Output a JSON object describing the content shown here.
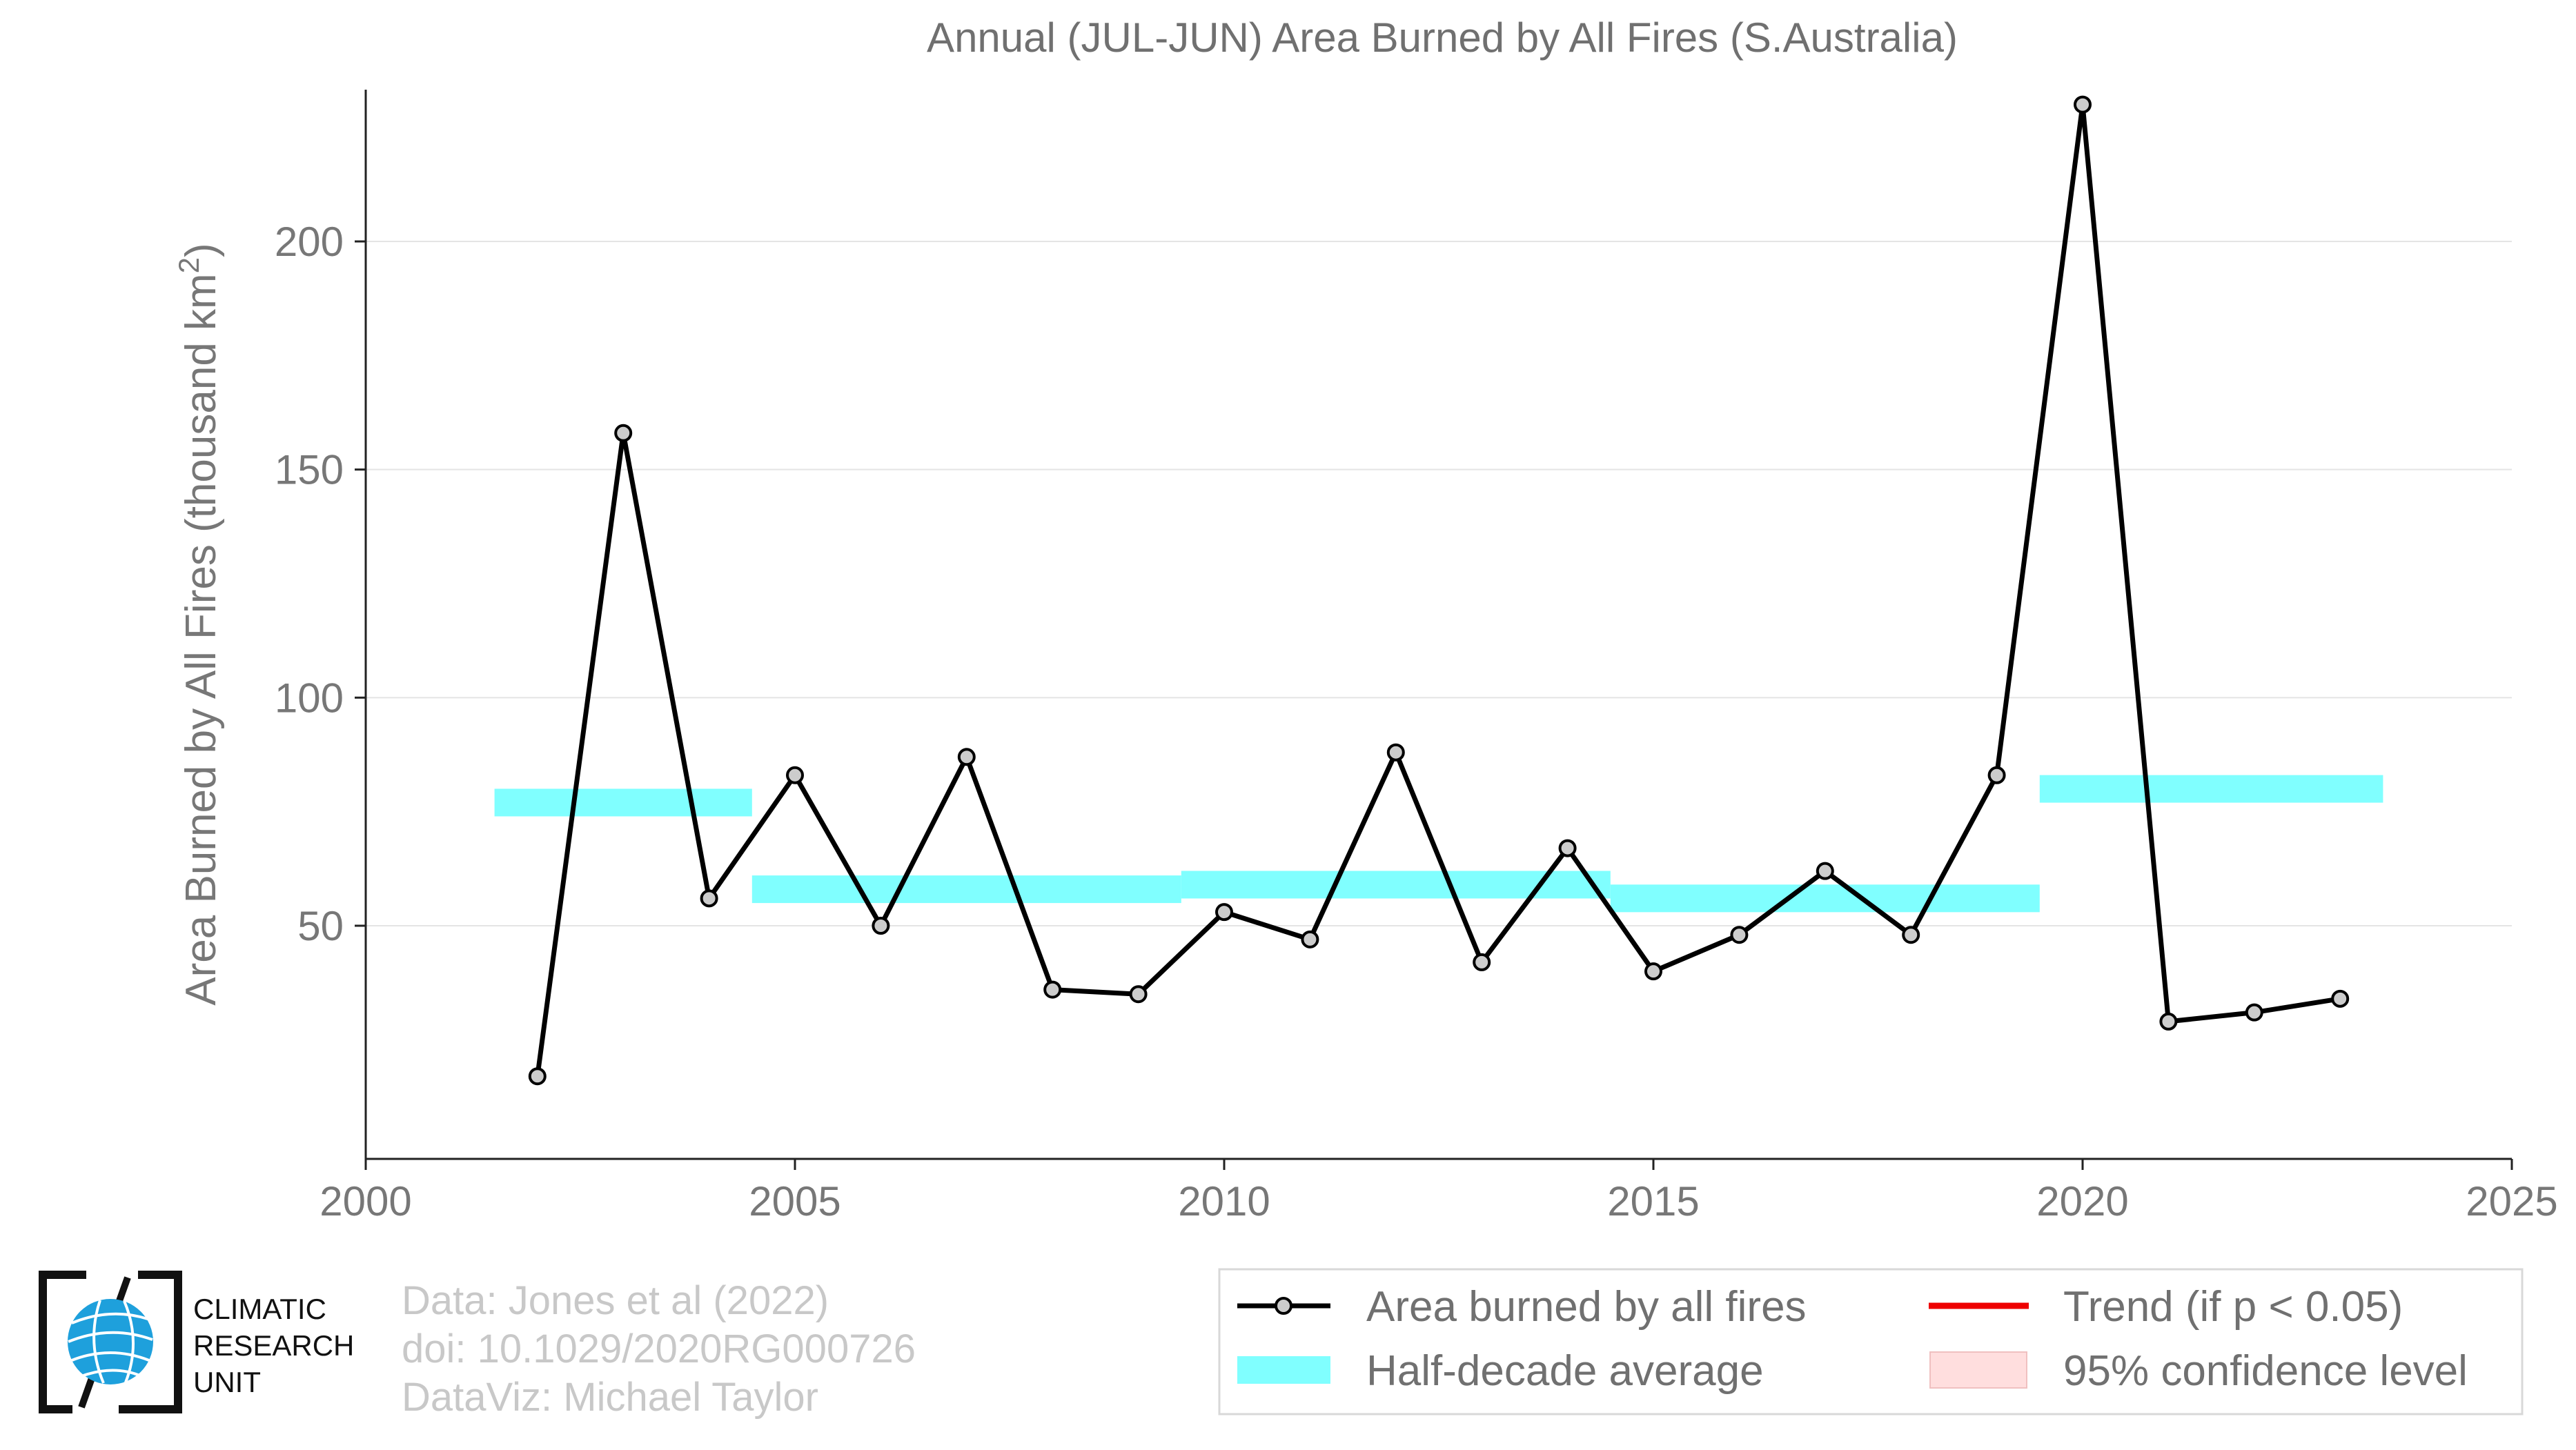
{
  "chart_data": {
    "type": "line",
    "title": "Annual (JUL-JUN) Area Burned by All Fires (S.Australia)",
    "ylabel": "Area Burned by All Fires (thousand km",
    "ylabel_superscript": "2",
    "ylabel_close": ")",
    "xlim": [
      2000,
      2025
    ],
    "ylim": [
      0,
      228
    ],
    "x_ticks": [
      2000,
      2005,
      2010,
      2015,
      2020,
      2025
    ],
    "y_ticks": [
      50,
      100,
      150,
      200
    ],
    "grid": "horizontal",
    "series": [
      {
        "name": "Area burned by all fires",
        "color": "#000000",
        "marker_fill": "#cccccc",
        "x": [
          2002,
          2003,
          2004,
          2005,
          2006,
          2007,
          2008,
          2009,
          2010,
          2011,
          2012,
          2013,
          2014,
          2015,
          2016,
          2017,
          2018,
          2019,
          2020,
          2021,
          2022,
          2023
        ],
        "y": [
          17,
          158,
          56,
          83,
          50,
          87,
          36,
          35,
          53,
          47,
          88,
          42,
          67,
          40,
          48,
          62,
          48,
          83,
          230,
          29,
          31,
          34
        ]
      }
    ],
    "half_decade_averages": [
      {
        "x_start": 2001.5,
        "x_end": 2004.5,
        "y": 77
      },
      {
        "x_start": 2004.5,
        "x_end": 2009.5,
        "y": 58
      },
      {
        "x_start": 2009.5,
        "x_end": 2014.5,
        "y": 59
      },
      {
        "x_start": 2014.5,
        "x_end": 2019.5,
        "y": 56
      },
      {
        "x_start": 2019.5,
        "x_end": 2023.5,
        "y": 80
      }
    ],
    "half_decade_color": "#80ffff",
    "legend": {
      "placement": "bottom-right",
      "entries": [
        {
          "label": "Area burned by all fires",
          "kind": "line-marker",
          "color": "#000000"
        },
        {
          "label": "Trend (if p < 0.05)",
          "kind": "line",
          "color": "#ee0000"
        },
        {
          "label": "Half-decade average",
          "kind": "band",
          "color": "#80ffff"
        },
        {
          "label": "95% confidence level",
          "kind": "patch",
          "color": "#ffdede"
        }
      ]
    }
  },
  "credits": {
    "line1": "Data: Jones et al (2022)",
    "line2": "doi: 10.1029/2020RG000726",
    "line3": "DataViz: Michael Taylor"
  },
  "logo": {
    "line1": "CLIMATIC",
    "line2": "RESEARCH",
    "line3": "UNIT",
    "icon": "globe-icon",
    "globe_color": "#1ea0dc"
  }
}
